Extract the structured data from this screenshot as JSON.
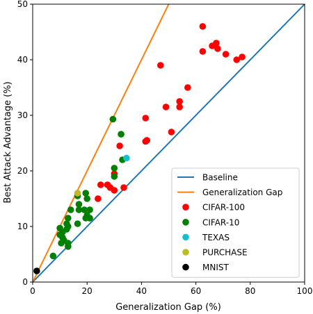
{
  "chart_data": {
    "type": "scatter",
    "xlabel": "Generalization Gap (%)",
    "ylabel": "Best Attack Advantage (%)",
    "xlim": [
      0,
      100
    ],
    "ylim": [
      0,
      50
    ],
    "xticks": [
      0,
      20,
      40,
      60,
      80,
      100
    ],
    "yticks": [
      0,
      10,
      20,
      30,
      40,
      50
    ],
    "grid": false,
    "legend_position": "bottom-right",
    "lines": [
      {
        "name": "Baseline",
        "color": "#1f77b4",
        "points": [
          [
            0,
            0
          ],
          [
            100,
            50
          ]
        ]
      },
      {
        "name": "Generalization Gap",
        "color": "#ff7f0e",
        "points": [
          [
            0,
            0
          ],
          [
            50,
            50
          ]
        ]
      }
    ],
    "series": [
      {
        "name": "CIFAR-100",
        "color": "#ff0000",
        "points": [
          [
            62.5,
            46
          ],
          [
            66,
            42.5
          ],
          [
            67.5,
            43
          ],
          [
            68,
            42
          ],
          [
            71,
            41
          ],
          [
            75,
            40
          ],
          [
            77,
            40.5
          ],
          [
            62.5,
            41.5
          ],
          [
            47,
            39
          ],
          [
            57,
            35
          ],
          [
            54,
            32.5
          ],
          [
            54,
            31.5
          ],
          [
            49,
            31.5
          ],
          [
            41.5,
            29.5
          ],
          [
            51,
            27
          ],
          [
            42,
            25.5
          ],
          [
            41.5,
            25.3
          ],
          [
            32,
            24.5
          ],
          [
            30,
            19.5
          ],
          [
            27.5,
            17.5
          ],
          [
            28.5,
            17
          ],
          [
            25,
            17.5
          ],
          [
            30,
            16.5
          ],
          [
            33.5,
            17
          ],
          [
            24,
            15
          ]
        ]
      },
      {
        "name": "CIFAR-10",
        "color": "#008000",
        "points": [
          [
            29.5,
            29.3
          ],
          [
            32.5,
            26.6
          ],
          [
            33,
            22
          ],
          [
            30,
            20.5
          ],
          [
            30,
            19
          ],
          [
            19.5,
            16
          ],
          [
            16.5,
            15.5
          ],
          [
            20,
            15
          ],
          [
            17,
            14
          ],
          [
            21,
            13
          ],
          [
            19,
            13
          ],
          [
            17,
            13
          ],
          [
            14,
            13
          ],
          [
            20,
            12
          ],
          [
            13,
            11.5
          ],
          [
            19.5,
            11.5
          ],
          [
            21,
            11.5
          ],
          [
            16.5,
            10.5
          ],
          [
            12.5,
            10.5
          ],
          [
            13,
            10
          ],
          [
            10,
            9.7
          ],
          [
            11,
            9
          ],
          [
            12.5,
            9.5
          ],
          [
            10,
            8.5
          ],
          [
            11,
            8
          ],
          [
            11.5,
            7.5
          ],
          [
            13,
            7
          ],
          [
            13,
            6.4
          ],
          [
            10.5,
            7
          ],
          [
            7.5,
            4.7
          ]
        ]
      },
      {
        "name": "TEXAS",
        "color": "#17becf",
        "points": [
          [
            34.5,
            22.3
          ]
        ]
      },
      {
        "name": "PURCHASE",
        "color": "#bcbd22",
        "points": [
          [
            16.5,
            16
          ]
        ]
      },
      {
        "name": "MNIST",
        "color": "#000000",
        "points": [
          [
            1.5,
            2
          ]
        ]
      }
    ]
  }
}
